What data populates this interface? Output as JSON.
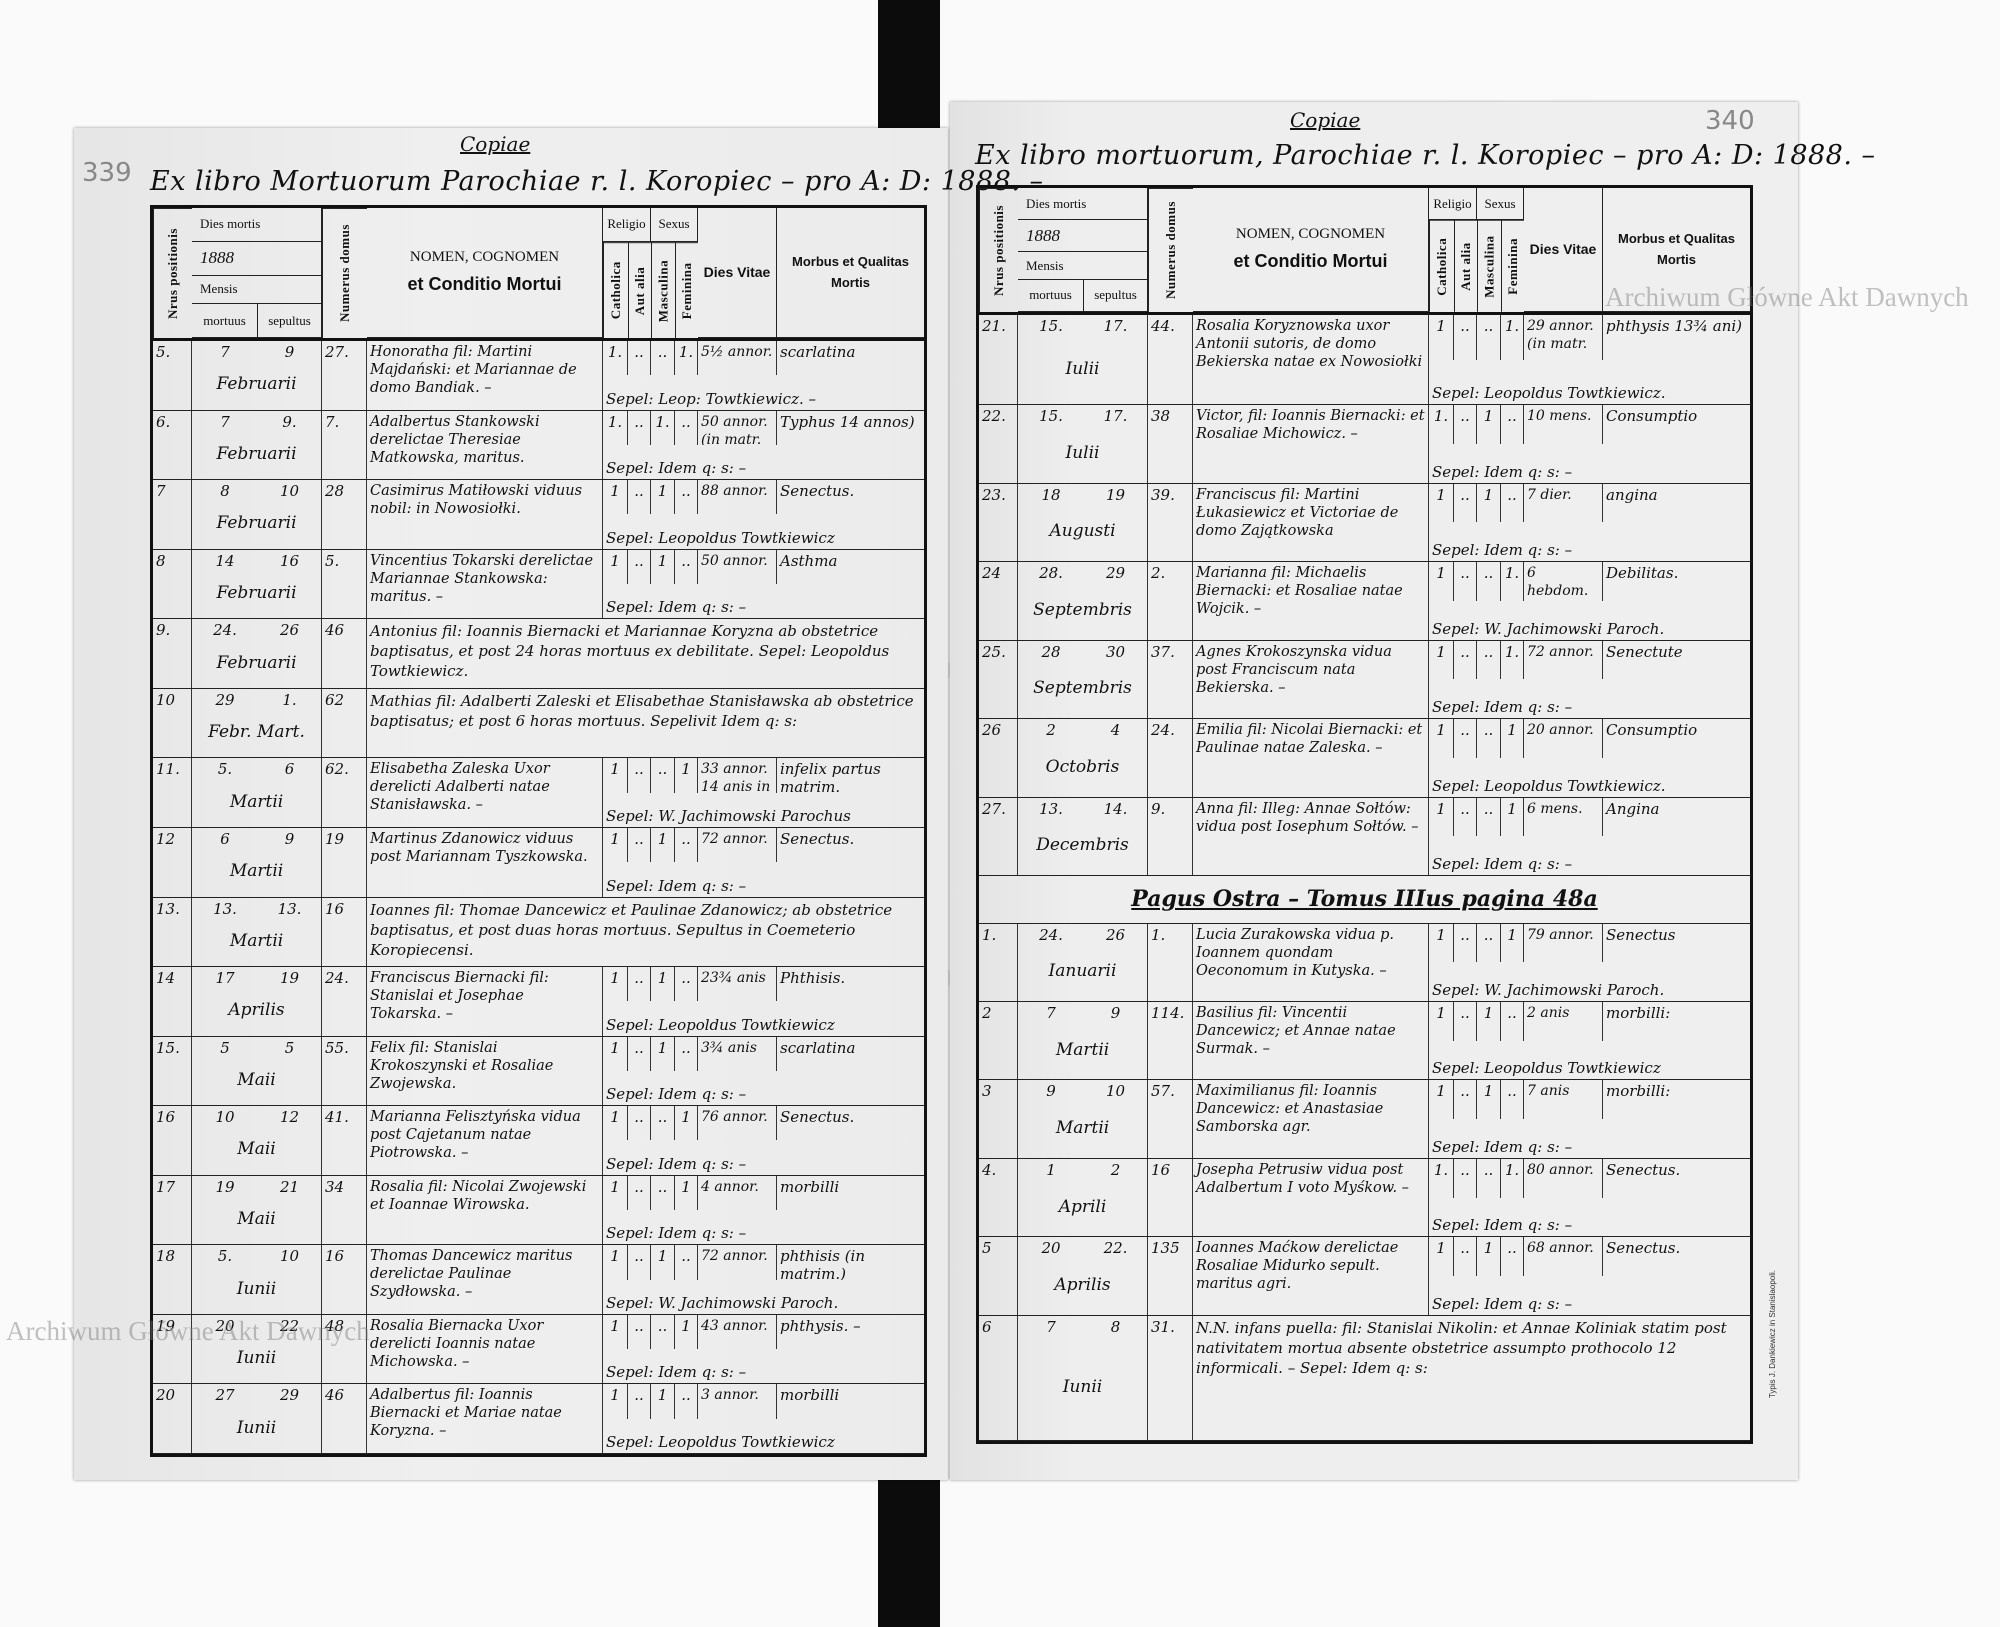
{
  "watermark": "Archiwum Główne Akt Dawnych",
  "table_header": {
    "nrus_positionis": "Nrus positionis",
    "dies_mortis": "Dies mortis",
    "year": "1888",
    "mensis": "Mensis",
    "mortuus": "mortuus",
    "sepultus": "sepultus",
    "numerus_domus": "Numerus domus",
    "nomen_line1": "NOMEN, COGNOMEN",
    "nomen_line2": "et Conditio Mortui",
    "religio": "Religio",
    "sexus": "Sexus",
    "catholica": "Catholica",
    "aut_alia": "Aut alia",
    "masculina": "Masculina",
    "feminina": "Feminina",
    "dies_vitae": "Dies Vitae",
    "morbus_line1": "Morbus et Qualitas",
    "morbus_line2": "Mortis"
  },
  "left_page": {
    "page_number": "339",
    "copy_label": "Copiae",
    "title": "Ex libro Mortuorum Parochiae r. l. Koropiec – pro A: D: 1888. –",
    "rows": [
      {
        "nr": "5.",
        "mortuus": "7",
        "sepultus": "9",
        "mensis": "Februarii",
        "domus": "27.",
        "nomen": "Honoratha fil: Martini Majdański: et Mariannae de domo Bandiak. –",
        "catholica": "1.",
        "aut_alia": "..",
        "masculina": "..",
        "feminina": "1.",
        "vitae": "5½ annor.",
        "morbus": "scarlatina",
        "sepultura": "Sepel: Leop: Towtkiewicz. –"
      },
      {
        "nr": "6.",
        "mortuus": "7",
        "sepultus": "9.",
        "mensis": "Februarii",
        "domus": "7.",
        "nomen": "Adalbertus Stankowski derelictae Theresiae Matkowska, maritus.",
        "catholica": "1.",
        "aut_alia": "..",
        "masculina": "1.",
        "feminina": "..",
        "vitae": "50 annor. (in matr.",
        "morbus": "Typhus 14 annos)",
        "sepultura": "Sepel: Idem q: s: –"
      },
      {
        "nr": "7",
        "mortuus": "8",
        "sepultus": "10",
        "mensis": "Februarii",
        "domus": "28",
        "nomen": "Casimirus Matiłowski viduus nobil: in Nowosiołki.",
        "catholica": "1",
        "aut_alia": "..",
        "masculina": "1",
        "feminina": "..",
        "vitae": "88 annor.",
        "morbus": "Senectus.",
        "sepultura": "Sepel: Leopoldus Towtkiewicz"
      },
      {
        "nr": "8",
        "mortuus": "14",
        "sepultus": "16",
        "mensis": "Februarii",
        "domus": "5.",
        "nomen": "Vincentius Tokarski derelictae Mariannae Stankowska: maritus. –",
        "catholica": "1",
        "aut_alia": "..",
        "masculina": "1",
        "feminina": "..",
        "vitae": "50 annor.",
        "morbus": "Asthma",
        "sepultura": "Sepel: Idem q: s: –"
      },
      {
        "nr": "9.",
        "mortuus": "24.",
        "sepultus": "26",
        "mensis": "Februarii",
        "domus": "46",
        "note": "Antonius fil: Ioannis Biernacki et Mariannae Koryzna ab obstetrice baptisatus, et post 24 horas mortuus ex debilitate. Sepel: Leopoldus Towtkiewicz."
      },
      {
        "nr": "10",
        "mortuus": "29",
        "sepultus": "1.",
        "mensis": "Febr.  Mart.",
        "domus": "62",
        "note": "Mathias fil: Adalberti Zaleski et Elisabethae Stanisławska ab obstetrice baptisatus; et post 6 horas mortuus. Sepelivit Idem q: s:"
      },
      {
        "nr": "11.",
        "mortuus": "5.",
        "sepultus": "6",
        "mensis": "Martii",
        "domus": "62.",
        "nomen": "Elisabetha Zaleska Uxor derelicti Adalberti natae Stanisławska. –",
        "catholica": "1",
        "aut_alia": "..",
        "masculina": "..",
        "feminina": "1",
        "vitae": "33 annor. 14 anis in",
        "morbus": "infelix partus matrim.",
        "sepultura": "Sepel: W. Jachimowski Parochus"
      },
      {
        "nr": "12",
        "mortuus": "6",
        "sepultus": "9",
        "mensis": "Martii",
        "domus": "19",
        "nomen": "Martinus Zdanowicz viduus post Mariannam Tyszkowska.",
        "catholica": "1",
        "aut_alia": "..",
        "masculina": "1",
        "feminina": "..",
        "vitae": "72 annor.",
        "morbus": "Senectus.",
        "sepultura": "Sepel: Idem q: s: –"
      },
      {
        "nr": "13.",
        "mortuus": "13.",
        "sepultus": "13.",
        "mensis": "Martii",
        "domus": "16",
        "note": "Ioannes fil: Thomae Dancewicz et Paulinae Zdanowicz; ab obstetrice baptisatus, et post duas horas mortuus. Sepultus in Coemeterio Koropiecensi."
      },
      {
        "nr": "14",
        "mortuus": "17",
        "sepultus": "19",
        "mensis": "Aprilis",
        "domus": "24.",
        "nomen": "Franciscus Biernacki fil: Stanislai et Josephae Tokarska. –",
        "catholica": "1",
        "aut_alia": "..",
        "masculina": "1",
        "feminina": "..",
        "vitae": "23¾ anis",
        "morbus": "Phthisis.",
        "sepultura": "Sepel: Leopoldus Towtkiewicz"
      },
      {
        "nr": "15.",
        "mortuus": "5",
        "sepultus": "5",
        "mensis": "Maii",
        "domus": "55.",
        "nomen": "Felix fil: Stanislai Krokoszynski et Rosaliae Zwojewska.",
        "catholica": "1",
        "aut_alia": "..",
        "masculina": "1",
        "feminina": "..",
        "vitae": "3¾ anis",
        "morbus": "scarlatina",
        "sepultura": "Sepel: Idem q: s: –"
      },
      {
        "nr": "16",
        "mortuus": "10",
        "sepultus": "12",
        "mensis": "Maii",
        "domus": "41.",
        "nomen": "Marianna Felisztyńska vidua post Cajetanum natae Piotrowska. –",
        "catholica": "1",
        "aut_alia": "..",
        "masculina": "..",
        "feminina": "1",
        "vitae": "76 annor.",
        "morbus": "Senectus.",
        "sepultura": "Sepel: Idem q: s: –"
      },
      {
        "nr": "17",
        "mortuus": "19",
        "sepultus": "21",
        "mensis": "Maii",
        "domus": "34",
        "nomen": "Rosalia fil: Nicolai Zwojewski et Ioannae Wirowska.",
        "catholica": "1",
        "aut_alia": "..",
        "masculina": "..",
        "feminina": "1",
        "vitae": "4 annor.",
        "morbus": "morbilli",
        "sepultura": "Sepel: Idem q: s: –"
      },
      {
        "nr": "18",
        "mortuus": "5.",
        "sepultus": "10",
        "mensis": "Iunii",
        "domus": "16",
        "nomen": "Thomas Dancewicz maritus derelictae Paulinae Szydłowska. –",
        "catholica": "1",
        "aut_alia": "..",
        "masculina": "1",
        "feminina": "..",
        "vitae": "72 annor.",
        "morbus": "phthisis (in matrim.)",
        "sepultura": "Sepel: W. Jachimowski Paroch."
      },
      {
        "nr": "19",
        "mortuus": "20",
        "sepultus": "22",
        "mensis": "Iunii",
        "domus": "48",
        "nomen": "Rosalia Biernacka Uxor derelicti Ioannis natae Michowska. –",
        "catholica": "1",
        "aut_alia": "..",
        "masculina": "..",
        "feminina": "1",
        "vitae": "43 annor.",
        "morbus": "phthysis. –",
        "sepultura": "Sepel: Idem q: s: –"
      },
      {
        "nr": "20",
        "mortuus": "27",
        "sepultus": "29",
        "mensis": "Iunii",
        "domus": "46",
        "nomen": "Adalbertus fil: Ioannis Biernacki et Mariae natae Koryzna. –",
        "catholica": "1",
        "aut_alia": "..",
        "masculina": "1",
        "feminina": "..",
        "vitae": "3 annor.",
        "morbus": "morbilli",
        "sepultura": "Sepel: Leopoldus Towtkiewicz"
      }
    ]
  },
  "right_page": {
    "page_number": "340",
    "copy_label": "Copiae",
    "title": "Ex libro mortuorum, Parochiae r. l. Koropiec – pro A: D: 1888. –",
    "printer": "Typis J. Dankiewicz in Stanislaopoli.",
    "rows": [
      {
        "nr": "21.",
        "mortuus": "15.",
        "sepultus": "17.",
        "mensis": "Iulii",
        "domus": "44.",
        "nomen": "Rosalia Koryznowska uxor Antonii sutoris, de domo Bekierska natae ex Nowosiołki",
        "catholica": "1",
        "aut_alia": "..",
        "masculina": "..",
        "feminina": "1.",
        "vitae": "29 annor. (in matr.",
        "morbus": "phthysis 13¾ ani)",
        "sepultura": "Sepel: Leopoldus Towtkiewicz."
      },
      {
        "nr": "22.",
        "mortuus": "15.",
        "sepultus": "17.",
        "mensis": "Iulii",
        "domus": "38",
        "nomen": "Victor, fil: Ioannis Biernacki: et Rosaliae Michowicz. –",
        "catholica": "1.",
        "aut_alia": "..",
        "masculina": "1",
        "feminina": "..",
        "vitae": "10 mens.",
        "morbus": "Consumptio",
        "sepultura": "Sepel: Idem q: s: –"
      },
      {
        "nr": "23.",
        "mortuus": "18",
        "sepultus": "19",
        "mensis": "Augusti",
        "domus": "39.",
        "nomen": "Franciscus fil: Martini Łukasiewicz et Victoriae de domo Zajątkowska",
        "catholica": "1",
        "aut_alia": "..",
        "masculina": "1",
        "feminina": "..",
        "vitae": "7 dier.",
        "morbus": "angina",
        "sepultura": "Sepel: Idem q: s: –"
      },
      {
        "nr": "24",
        "mortuus": "28.",
        "sepultus": "29",
        "mensis": "Septembris",
        "domus": "2.",
        "nomen": "Marianna fil: Michaelis Biernacki: et Rosaliae natae Wojcik. –",
        "catholica": "1",
        "aut_alia": "..",
        "masculina": "..",
        "feminina": "1.",
        "vitae": "6 hebdom.",
        "morbus": "Debilitas.",
        "sepultura": "Sepel: W. Jachimowski Paroch."
      },
      {
        "nr": "25.",
        "mortuus": "28",
        "sepultus": "30",
        "mensis": "Septembris",
        "domus": "37.",
        "nomen": "Agnes Krokoszynska vidua post Franciscum nata Bekierska. –",
        "catholica": "1",
        "aut_alia": "..",
        "masculina": "..",
        "feminina": "1.",
        "vitae": "72 annor.",
        "morbus": "Senectute",
        "sepultura": "Sepel: Idem q: s: –"
      },
      {
        "nr": "26",
        "mortuus": "2",
        "sepultus": "4",
        "mensis": "Octobris",
        "domus": "24.",
        "nomen": "Emilia fil: Nicolai Biernacki: et Paulinae natae Zaleska. –",
        "catholica": "1",
        "aut_alia": "..",
        "masculina": "..",
        "feminina": "1",
        "vitae": "20 annor.",
        "morbus": "Consumptio",
        "sepultura": "Sepel: Leopoldus Towtkiewicz."
      },
      {
        "nr": "27.",
        "mortuus": "13.",
        "sepultus": "14.",
        "mensis": "Decembris",
        "domus": "9.",
        "nomen": "Anna fil: Illeg: Annae Sołtów: vidua post Iosephum Sołtów. –",
        "catholica": "1",
        "aut_alia": "..",
        "masculina": "..",
        "feminina": "1",
        "vitae": "6 mens.",
        "morbus": "Angina",
        "sepultura": "Sepel: Idem q: s: –"
      },
      {
        "heading": "Pagus Ostra – Tomus IIIus pagina 48a"
      },
      {
        "nr": "1.",
        "mortuus": "24.",
        "sepultus": "26",
        "mensis": "Ianuarii",
        "domus": "1.",
        "nomen": "Lucia Zurakowska vidua p. Ioannem quondam Oeconomum in Kutyska. –",
        "catholica": "1",
        "aut_alia": "..",
        "masculina": "..",
        "feminina": "1",
        "vitae": "79 annor.",
        "morbus": "Senectus",
        "sepultura": "Sepel: W. Jachimowski Paroch."
      },
      {
        "nr": "2",
        "mortuus": "7",
        "sepultus": "9",
        "mensis": "Martii",
        "domus": "114.",
        "nomen": "Basilius fil: Vincentii Dancewicz; et Annae natae Surmak. –",
        "catholica": "1",
        "aut_alia": "..",
        "masculina": "1",
        "feminina": "..",
        "vitae": "2 anis",
        "morbus": "morbilli:",
        "sepultura": "Sepel: Leopoldus Towtkiewicz"
      },
      {
        "nr": "3",
        "mortuus": "9",
        "sepultus": "10",
        "mensis": "Martii",
        "domus": "57.",
        "nomen": "Maximilianus fil: Ioannis Dancewicz: et Anastasiae Samborska agr.",
        "catholica": "1",
        "aut_alia": "..",
        "masculina": "1",
        "feminina": "..",
        "vitae": "7 anis",
        "morbus": "morbilli:",
        "sepultura": "Sepel: Idem q: s: –"
      },
      {
        "nr": "4.",
        "mortuus": "1",
        "sepultus": "2",
        "mensis": "Aprili",
        "domus": "16",
        "nomen": "Josepha Petrusiw vidua post Adalbertum I voto Myśkow. –",
        "catholica": "1.",
        "aut_alia": "..",
        "masculina": "..",
        "feminina": "1.",
        "vitae": "80 annor.",
        "morbus": "Senectus.",
        "sepultura": "Sepel: Idem q: s: –"
      },
      {
        "nr": "5",
        "mortuus": "20",
        "sepultus": "22.",
        "mensis": "Aprilis",
        "domus": "135",
        "nomen": "Ioannes Maćkow derelictae Rosaliae Midurko sepult. maritus agri.",
        "catholica": "1",
        "aut_alia": "..",
        "masculina": "1",
        "feminina": "..",
        "vitae": "68 annor.",
        "morbus": "Senectus.",
        "sepultura": "Sepel: Idem q: s: –"
      },
      {
        "nr": "6",
        "mortuus": "7",
        "sepultus": "8",
        "mensis": "Iunii",
        "domus": "31.",
        "note": "N.N. infans puella: fil: Stanislai Nikolin: et Annae Koliniak statim post nativitatem mortua absente obstetrice assumpto prothocolo 12 informicali. – Sepel: Idem q: s:"
      }
    ]
  }
}
